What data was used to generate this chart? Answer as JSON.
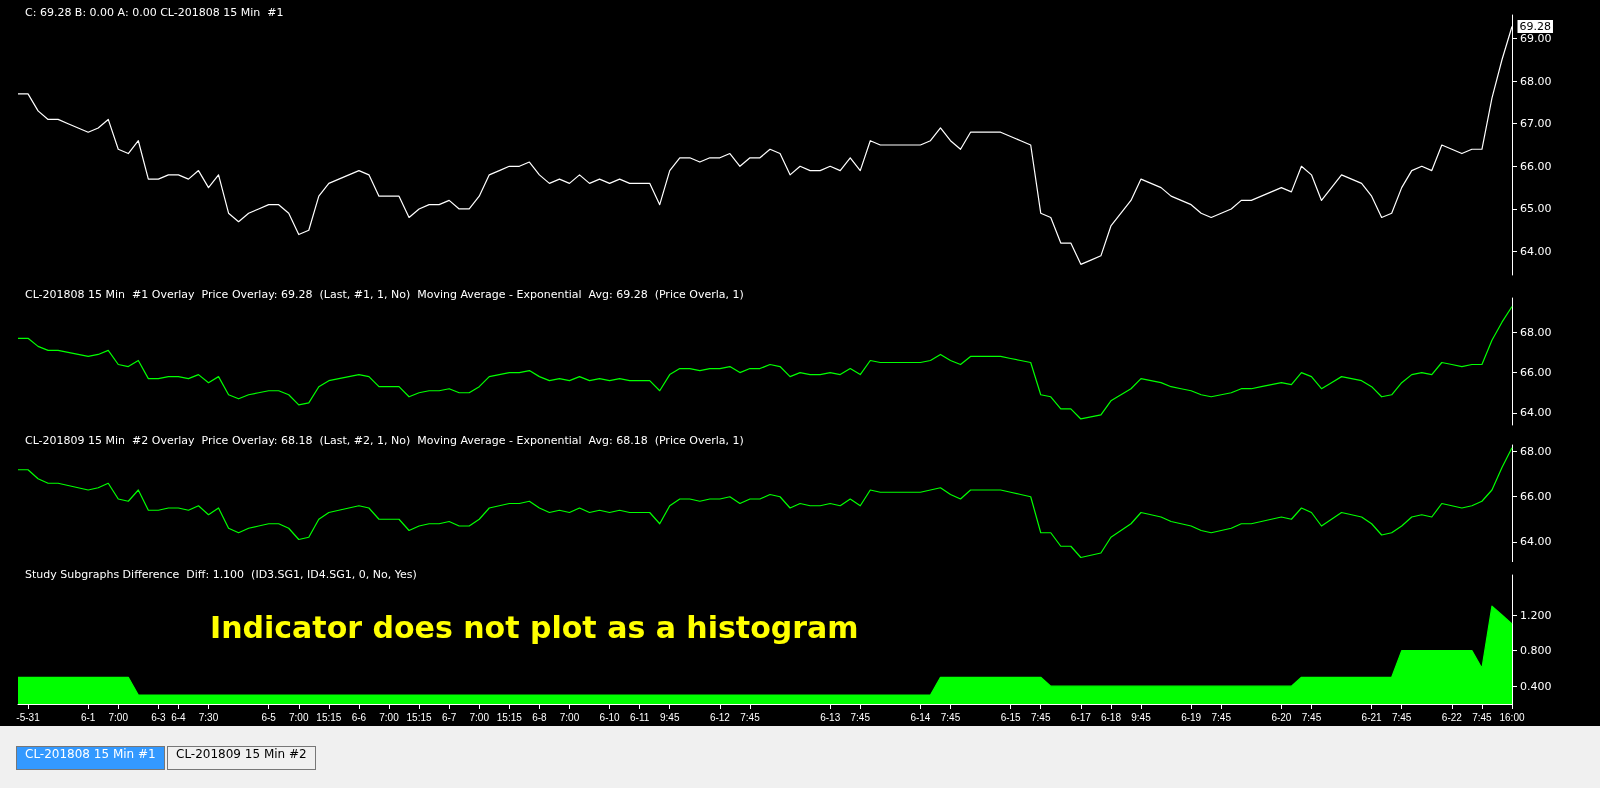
{
  "chart_data": [
    {
      "type": "line",
      "title": "C: 69.28 B: 0.00 A: 0.00 CL-201808 15 Min  #1",
      "tick_labels": "y",
      "grid": false,
      "marker": "none",
      "categories": [
        null,
        "-5-31",
        null,
        null,
        null,
        null,
        null,
        "6-1",
        null,
        null,
        "7:00",
        null,
        null,
        null,
        "6-3",
        null,
        "6-4",
        null,
        null,
        "7:30",
        null,
        null,
        null,
        null,
        null,
        "6-5",
        null,
        null,
        "7:00",
        null,
        null,
        "15:15",
        null,
        null,
        "6-6",
        null,
        null,
        "7:00",
        null,
        null,
        "15:15",
        null,
        null,
        "6-7",
        null,
        null,
        "7:00",
        null,
        null,
        "15:15",
        null,
        null,
        "6-8",
        null,
        null,
        "7:00",
        null,
        null,
        null,
        "6-10",
        null,
        null,
        "6-11",
        null,
        null,
        "9:45",
        null,
        null,
        null,
        null,
        "6-12",
        null,
        null,
        "7:45",
        null,
        null,
        null,
        null,
        null,
        null,
        null,
        "6-13",
        null,
        null,
        "7:45",
        null,
        null,
        null,
        null,
        null,
        "6-14",
        null,
        null,
        "7:45",
        null,
        null,
        null,
        null,
        null,
        "6-15",
        null,
        null,
        "7:45",
        null,
        null,
        null,
        "6-17",
        null,
        null,
        "6-18",
        null,
        null,
        "9:45",
        null,
        null,
        null,
        null,
        "6-19",
        null,
        null,
        "7:45",
        null,
        null,
        null,
        null,
        null,
        "6-20",
        null,
        null,
        "7:45",
        null,
        null,
        null,
        null,
        null,
        "6-21",
        null,
        null,
        "7:45",
        null,
        null,
        null,
        null,
        "6-22",
        null,
        null,
        "7:45",
        null,
        null,
        "16:00"
      ],
      "ylim": [
        63.45,
        69.55
      ],
      "yticks": [
        {
          "value": 64,
          "label": "64.00"
        },
        {
          "value": 65,
          "label": "65.00"
        },
        {
          "value": 66,
          "label": "66.00"
        },
        {
          "value": 67,
          "label": "67.00"
        },
        {
          "value": 68,
          "label": "68.00"
        },
        {
          "value": 69,
          "label": "69.00"
        }
      ],
      "annotations": [
        {
          "text": "69.28",
          "x": "16:00",
          "y": 69.28
        }
      ],
      "series": [
        {
          "color": "#ffffff",
          "values": [
            67.7,
            67.7,
            67.3,
            67.1,
            67.1,
            67.0,
            66.9,
            66.8,
            66.9,
            67.1,
            66.4,
            66.3,
            66.6,
            65.7,
            65.7,
            65.8,
            65.8,
            65.7,
            65.9,
            65.5,
            65.8,
            64.9,
            64.7,
            64.9,
            65.0,
            65.1,
            65.1,
            64.9,
            64.4,
            64.5,
            65.3,
            65.6,
            65.7,
            65.8,
            65.9,
            65.8,
            65.3,
            65.3,
            65.3,
            64.8,
            65.0,
            65.1,
            65.1,
            65.2,
            65.0,
            65.0,
            65.3,
            65.8,
            65.9,
            66.0,
            66.0,
            66.1,
            65.8,
            65.6,
            65.7,
            65.6,
            65.8,
            65.6,
            65.7,
            65.6,
            65.7,
            65.6,
            65.6,
            65.6,
            65.1,
            65.9,
            66.2,
            66.2,
            66.1,
            66.2,
            66.2,
            66.3,
            66.0,
            66.2,
            66.2,
            66.4,
            66.3,
            65.8,
            66.0,
            65.9,
            65.9,
            66.0,
            65.9,
            66.2,
            65.9,
            66.6,
            66.5,
            66.5,
            66.5,
            66.5,
            66.5,
            66.6,
            66.9,
            66.6,
            66.4,
            66.8,
            66.8,
            66.8,
            66.8,
            66.7,
            66.6,
            66.5,
            64.9,
            64.8,
            64.2,
            64.2,
            63.7,
            63.8,
            63.9,
            64.6,
            64.9,
            65.2,
            65.7,
            65.6,
            65.5,
            65.3,
            65.2,
            65.1,
            64.9,
            64.8,
            64.9,
            65.0,
            65.2,
            65.2,
            65.3,
            65.4,
            65.5,
            65.4,
            66.0,
            65.8,
            65.2,
            65.5,
            65.8,
            65.7,
            65.6,
            65.3,
            64.8,
            64.9,
            65.5,
            65.9,
            66.0,
            65.9,
            66.5,
            66.4,
            66.3,
            66.4,
            66.4,
            67.6,
            68.5,
            69.28
          ]
        }
      ]
    },
    {
      "type": "line",
      "title": "CL-201808 15 Min  #1 Overlay  Price Overlay: 69.28  (Last, #1, 1, No)  Moving Average - Exponential  Avg: 69.28  (Price Overla, 1)",
      "tick_labels": "y",
      "grid": false,
      "marker": "none",
      "categories": [
        null,
        "-5-31",
        null,
        null,
        null,
        null,
        null,
        "6-1",
        null,
        null,
        "7:00",
        null,
        null,
        null,
        "6-3",
        null,
        "6-4",
        null,
        null,
        "7:30",
        null,
        null,
        null,
        null,
        null,
        "6-5",
        null,
        null,
        "7:00",
        null,
        null,
        "15:15",
        null,
        null,
        "6-6",
        null,
        null,
        "7:00",
        null,
        null,
        "15:15",
        null,
        null,
        "6-7",
        null,
        null,
        "7:00",
        null,
        null,
        "15:15",
        null,
        null,
        "6-8",
        null,
        null,
        "7:00",
        null,
        null,
        null,
        "6-10",
        null,
        null,
        "6-11",
        null,
        null,
        "9:45",
        null,
        null,
        null,
        null,
        "6-12",
        null,
        null,
        "7:45",
        null,
        null,
        null,
        null,
        null,
        null,
        null,
        "6-13",
        null,
        null,
        "7:45",
        null,
        null,
        null,
        null,
        null,
        "6-14",
        null,
        null,
        "7:45",
        null,
        null,
        null,
        null,
        null,
        "6-15",
        null,
        null,
        "7:45",
        null,
        null,
        null,
        "6-17",
        null,
        null,
        "6-18",
        null,
        null,
        "9:45",
        null,
        null,
        null,
        null,
        "6-19",
        null,
        null,
        "7:45",
        null,
        null,
        null,
        null,
        null,
        "6-20",
        null,
        null,
        "7:45",
        null,
        null,
        null,
        null,
        null,
        "6-21",
        null,
        null,
        "7:45",
        null,
        null,
        null,
        null,
        "6-22",
        null,
        null,
        "7:45",
        null,
        null,
        "16:00"
      ],
      "ylim": [
        63.4,
        69.7
      ],
      "yticks": [
        {
          "value": 64,
          "label": "64.00"
        },
        {
          "value": 66,
          "label": "66.00"
        },
        {
          "value": 68,
          "label": "68.00"
        }
      ],
      "series": [
        {
          "color": "#00ff00",
          "values": [
            67.7,
            67.7,
            67.3,
            67.1,
            67.1,
            67.0,
            66.9,
            66.8,
            66.9,
            67.1,
            66.4,
            66.3,
            66.6,
            65.7,
            65.7,
            65.8,
            65.8,
            65.7,
            65.9,
            65.5,
            65.8,
            64.9,
            64.7,
            64.9,
            65.0,
            65.1,
            65.1,
            64.9,
            64.4,
            64.5,
            65.3,
            65.6,
            65.7,
            65.8,
            65.9,
            65.8,
            65.3,
            65.3,
            65.3,
            64.8,
            65.0,
            65.1,
            65.1,
            65.2,
            65.0,
            65.0,
            65.3,
            65.8,
            65.9,
            66.0,
            66.0,
            66.1,
            65.8,
            65.6,
            65.7,
            65.6,
            65.8,
            65.6,
            65.7,
            65.6,
            65.7,
            65.6,
            65.6,
            65.6,
            65.1,
            65.9,
            66.2,
            66.2,
            66.1,
            66.2,
            66.2,
            66.3,
            66.0,
            66.2,
            66.2,
            66.4,
            66.3,
            65.8,
            66.0,
            65.9,
            65.9,
            66.0,
            65.9,
            66.2,
            65.9,
            66.6,
            66.5,
            66.5,
            66.5,
            66.5,
            66.5,
            66.6,
            66.9,
            66.6,
            66.4,
            66.8,
            66.8,
            66.8,
            66.8,
            66.7,
            66.6,
            66.5,
            64.9,
            64.8,
            64.2,
            64.2,
            63.7,
            63.8,
            63.9,
            64.6,
            64.9,
            65.2,
            65.7,
            65.6,
            65.5,
            65.3,
            65.2,
            65.1,
            64.9,
            64.8,
            64.9,
            65.0,
            65.2,
            65.2,
            65.3,
            65.4,
            65.5,
            65.4,
            66.0,
            65.8,
            65.2,
            65.5,
            65.8,
            65.7,
            65.6,
            65.3,
            64.8,
            64.9,
            65.5,
            65.9,
            66.0,
            65.9,
            66.5,
            66.4,
            66.3,
            66.4,
            66.4,
            67.6,
            68.5,
            69.28
          ]
        }
      ]
    },
    {
      "type": "line",
      "title": "CL-201809 15 Min  #2 Overlay  Price Overlay: 68.18  (Last, #2, 1, No)  Moving Average - Exponential  Avg: 68.18  (Price Overla, 1)",
      "tick_labels": "y",
      "grid": false,
      "marker": "none",
      "categories": [
        null,
        "-5-31",
        null,
        null,
        null,
        null,
        null,
        "6-1",
        null,
        null,
        "7:00",
        null,
        null,
        null,
        "6-3",
        null,
        "6-4",
        null,
        null,
        "7:30",
        null,
        null,
        null,
        null,
        null,
        "6-5",
        null,
        null,
        "7:00",
        null,
        null,
        "15:15",
        null,
        null,
        "6-6",
        null,
        null,
        "7:00",
        null,
        null,
        "15:15",
        null,
        null,
        "6-7",
        null,
        null,
        "7:00",
        null,
        null,
        "15:15",
        null,
        null,
        "6-8",
        null,
        null,
        "7:00",
        null,
        null,
        null,
        "6-10",
        null,
        null,
        "6-11",
        null,
        null,
        "9:45",
        null,
        null,
        null,
        null,
        "6-12",
        null,
        null,
        "7:45",
        null,
        null,
        null,
        null,
        null,
        null,
        null,
        "6-13",
        null,
        null,
        "7:45",
        null,
        null,
        null,
        null,
        null,
        "6-14",
        null,
        null,
        "7:45",
        null,
        null,
        null,
        null,
        null,
        "6-15",
        null,
        null,
        "7:45",
        null,
        null,
        null,
        "6-17",
        null,
        null,
        "6-18",
        null,
        null,
        "9:45",
        null,
        null,
        null,
        null,
        "6-19",
        null,
        null,
        "7:45",
        null,
        null,
        null,
        null,
        null,
        "6-20",
        null,
        null,
        "7:45",
        null,
        null,
        null,
        null,
        null,
        "6-21",
        null,
        null,
        "7:45",
        null,
        null,
        null,
        null,
        "6-22",
        null,
        null,
        "7:45",
        null,
        null,
        "16:00"
      ],
      "ylim": [
        63.1,
        68.3
      ],
      "yticks": [
        {
          "value": 64,
          "label": "64.00"
        },
        {
          "value": 66,
          "label": "66.00"
        },
        {
          "value": 68,
          "label": "68.00"
        }
      ],
      "series": [
        {
          "color": "#00ff00",
          "values": [
            67.2,
            67.2,
            66.8,
            66.6,
            66.6,
            66.5,
            66.4,
            66.3,
            66.4,
            66.6,
            65.9,
            65.8,
            66.3,
            65.4,
            65.4,
            65.5,
            65.5,
            65.4,
            65.6,
            65.2,
            65.5,
            64.6,
            64.4,
            64.6,
            64.7,
            64.8,
            64.8,
            64.6,
            64.1,
            64.2,
            65.0,
            65.3,
            65.4,
            65.5,
            65.6,
            65.5,
            65.0,
            65.0,
            65.0,
            64.5,
            64.7,
            64.8,
            64.8,
            64.9,
            64.7,
            64.7,
            65.0,
            65.5,
            65.6,
            65.7,
            65.7,
            65.8,
            65.5,
            65.3,
            65.4,
            65.3,
            65.5,
            65.3,
            65.4,
            65.3,
            65.4,
            65.3,
            65.3,
            65.3,
            64.8,
            65.6,
            65.9,
            65.9,
            65.8,
            65.9,
            65.9,
            66.0,
            65.7,
            65.9,
            65.9,
            66.1,
            66.0,
            65.5,
            65.7,
            65.6,
            65.6,
            65.7,
            65.6,
            65.9,
            65.6,
            66.3,
            66.2,
            66.2,
            66.2,
            66.2,
            66.2,
            66.3,
            66.4,
            66.1,
            65.9,
            66.3,
            66.3,
            66.3,
            66.3,
            66.2,
            66.1,
            66.0,
            64.4,
            64.4,
            63.8,
            63.8,
            63.3,
            63.4,
            63.5,
            64.2,
            64.5,
            64.8,
            65.3,
            65.2,
            65.1,
            64.9,
            64.8,
            64.7,
            64.5,
            64.4,
            64.5,
            64.6,
            64.8,
            64.8,
            64.9,
            65.0,
            65.1,
            65.0,
            65.5,
            65.3,
            64.7,
            65.0,
            65.3,
            65.2,
            65.1,
            64.8,
            64.3,
            64.4,
            64.7,
            65.1,
            65.2,
            65.1,
            65.7,
            65.6,
            65.5,
            65.6,
            65.8,
            66.3,
            67.3,
            68.18
          ]
        }
      ]
    },
    {
      "type": "area",
      "title": "Study Subgraphs Difference  Diff: 1.100  (ID3.SG1, ID4.SG1, 0, No, Yes)",
      "grid": false,
      "marker": "none",
      "categories": [
        null,
        "-5-31",
        null,
        null,
        null,
        null,
        null,
        "6-1",
        null,
        null,
        "7:00",
        null,
        null,
        null,
        "6-3",
        null,
        "6-4",
        null,
        null,
        "7:30",
        null,
        null,
        null,
        null,
        null,
        "6-5",
        null,
        null,
        "7:00",
        null,
        null,
        "15:15",
        null,
        null,
        "6-6",
        null,
        null,
        "7:00",
        null,
        null,
        "15:15",
        null,
        null,
        "6-7",
        null,
        null,
        "7:00",
        null,
        null,
        "15:15",
        null,
        null,
        "6-8",
        null,
        null,
        "7:00",
        null,
        null,
        null,
        "6-10",
        null,
        null,
        "6-11",
        null,
        null,
        "9:45",
        null,
        null,
        null,
        null,
        "6-12",
        null,
        null,
        "7:45",
        null,
        null,
        null,
        null,
        null,
        null,
        null,
        "6-13",
        null,
        null,
        "7:45",
        null,
        null,
        null,
        null,
        null,
        "6-14",
        null,
        null,
        "7:45",
        null,
        null,
        null,
        null,
        null,
        "6-15",
        null,
        null,
        "7:45",
        null,
        null,
        null,
        "6-17",
        null,
        null,
        "6-18",
        null,
        null,
        "9:45",
        null,
        null,
        null,
        null,
        "6-19",
        null,
        null,
        "7:45",
        null,
        null,
        null,
        null,
        null,
        "6-20",
        null,
        null,
        "7:45",
        null,
        null,
        null,
        null,
        null,
        "6-21",
        null,
        null,
        "7:45",
        null,
        null,
        null,
        null,
        "6-22",
        null,
        null,
        "7:45",
        null,
        null,
        "16:00"
      ],
      "ylim": [
        0.2,
        1.65
      ],
      "yticks": [
        {
          "value": 0.4,
          "label": "0.400"
        },
        {
          "value": 0.8,
          "label": "0.800"
        },
        {
          "value": 1.2,
          "label": "1.200"
        }
      ],
      "annotations": [
        "Indicator does not plot as a histogram",
        "CL-201808 15 Min  #1",
        "CL-201809 15 Min  #2"
      ],
      "series": [
        {
          "color": "#00ff00",
          "values": [
            0.5,
            0.5,
            0.5,
            0.5,
            0.5,
            0.5,
            0.5,
            0.5,
            0.5,
            0.5,
            0.5,
            0.5,
            0.3,
            0.3,
            0.3,
            0.3,
            0.3,
            0.3,
            0.3,
            0.3,
            0.3,
            0.3,
            0.3,
            0.3,
            0.3,
            0.3,
            0.3,
            0.3,
            0.3,
            0.3,
            0.3,
            0.3,
            0.3,
            0.3,
            0.3,
            0.3,
            0.3,
            0.3,
            0.3,
            0.3,
            0.3,
            0.3,
            0.3,
            0.3,
            0.3,
            0.3,
            0.3,
            0.3,
            0.3,
            0.3,
            0.3,
            0.3,
            0.3,
            0.3,
            0.3,
            0.3,
            0.3,
            0.3,
            0.3,
            0.3,
            0.3,
            0.3,
            0.3,
            0.3,
            0.3,
            0.3,
            0.3,
            0.3,
            0.3,
            0.3,
            0.3,
            0.3,
            0.3,
            0.3,
            0.3,
            0.3,
            0.3,
            0.3,
            0.3,
            0.3,
            0.3,
            0.3,
            0.3,
            0.3,
            0.3,
            0.3,
            0.3,
            0.3,
            0.3,
            0.3,
            0.3,
            0.3,
            0.5,
            0.5,
            0.5,
            0.5,
            0.5,
            0.5,
            0.5,
            0.5,
            0.5,
            0.5,
            0.5,
            0.4,
            0.4,
            0.4,
            0.4,
            0.4,
            0.4,
            0.4,
            0.4,
            0.4,
            0.4,
            0.4,
            0.4,
            0.4,
            0.4,
            0.4,
            0.4,
            0.4,
            0.4,
            0.4,
            0.4,
            0.4,
            0.4,
            0.4,
            0.4,
            0.4,
            0.5,
            0.5,
            0.5,
            0.5,
            0.5,
            0.5,
            0.5,
            0.5,
            0.5,
            0.5,
            0.8,
            0.8,
            0.8,
            0.8,
            0.8,
            0.8,
            0.8,
            0.8,
            0.6,
            1.3,
            1.2,
            1.1
          ]
        }
      ]
    }
  ]
}
